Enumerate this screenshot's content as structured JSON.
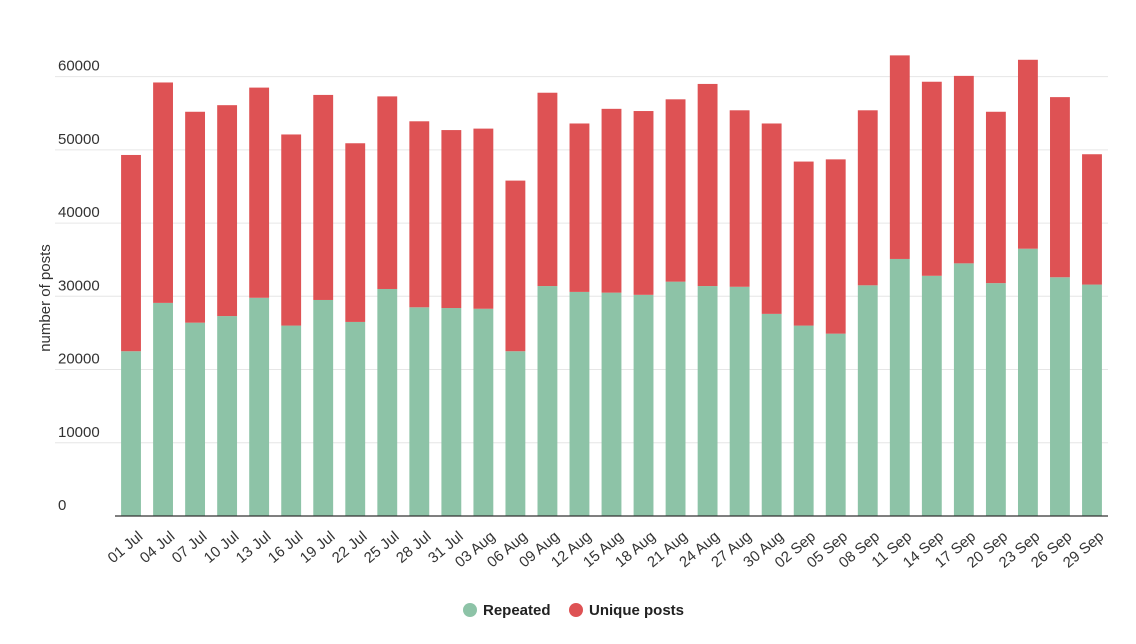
{
  "chart_data": {
    "type": "bar",
    "stacked": true,
    "ylabel": "number of posts",
    "xlabel": "",
    "ylim": [
      0,
      65000
    ],
    "yticks": [
      0,
      10000,
      20000,
      30000,
      40000,
      50000,
      60000
    ],
    "grid": true,
    "legend_position": "bottom-center",
    "categories": [
      "01 Jul",
      "04 Jul",
      "07 Jul",
      "10 Jul",
      "13 Jul",
      "16 Jul",
      "19 Jul",
      "22 Jul",
      "25 Jul",
      "28 Jul",
      "31 Jul",
      "03 Aug",
      "06 Aug",
      "09 Aug",
      "12 Aug",
      "15 Aug",
      "18 Aug",
      "21 Aug",
      "24 Aug",
      "27 Aug",
      "30 Aug",
      "02 Sep",
      "05 Sep",
      "08 Sep",
      "11 Sep",
      "14 Sep",
      "17 Sep",
      "20 Sep",
      "23 Sep",
      "26 Sep",
      "29 Sep"
    ],
    "series": [
      {
        "name": "Repeated",
        "color": "#8dc3a7",
        "values": [
          22500,
          29100,
          26400,
          27300,
          29800,
          26000,
          29500,
          26500,
          31000,
          28500,
          28400,
          28300,
          22500,
          31400,
          30600,
          30500,
          30200,
          32000,
          31400,
          31300,
          27600,
          26000,
          24900,
          31500,
          35100,
          32800,
          34500,
          31800,
          36500,
          32600,
          31600
        ]
      },
      {
        "name": "Unique posts",
        "color": "#de5254",
        "values": [
          26800,
          30100,
          28800,
          28800,
          28700,
          26100,
          28000,
          24400,
          26300,
          25400,
          24300,
          24600,
          23300,
          26400,
          23000,
          25100,
          25100,
          24900,
          27600,
          24100,
          26000,
          22400,
          23800,
          23900,
          27800,
          26500,
          25600,
          23400,
          25800,
          24600,
          17800
        ]
      }
    ]
  }
}
